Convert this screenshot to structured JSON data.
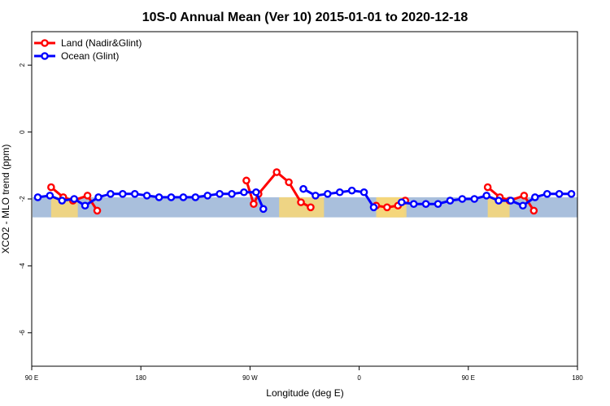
{
  "chart_data": {
    "type": "line",
    "title": "10S-0 Annual Mean (Ver 10)   2015-01-01 to 2020-12-18",
    "xlabel": "Longitude (deg E)",
    "ylabel": "XCO2 - MLO trend (ppm)",
    "xlim": [
      90,
      540
    ],
    "ylim": [
      -7,
      3
    ],
    "xticks": [
      {
        "value": 90,
        "label": "90 E"
      },
      {
        "value": 180,
        "label": "180"
      },
      {
        "value": 270,
        "label": "90 W"
      },
      {
        "value": 360,
        "label": "0"
      },
      {
        "value": 450,
        "label": "90 E"
      },
      {
        "value": 540,
        "label": "180"
      }
    ],
    "yticks": [
      {
        "value": 2,
        "label": "2"
      },
      {
        "value": 0,
        "label": "0"
      },
      {
        "value": -2,
        "label": "-2"
      },
      {
        "value": -4,
        "label": "-4"
      },
      {
        "value": -6,
        "label": "-6"
      }
    ],
    "grid": false,
    "legend_position": "top-left",
    "background_band": {
      "y_min": -2.55,
      "y_max": -1.95
    },
    "land_patches": [
      [
        106,
        128
      ],
      [
        294,
        331
      ],
      [
        374,
        399
      ],
      [
        466,
        484
      ],
      [
        375,
        397
      ]
    ],
    "series": [
      {
        "name": "Land (Nadir&Glint)",
        "color": "#ff0000",
        "segments": [
          [
            [
              106,
              -1.65
            ],
            [
              116,
              -1.95
            ],
            [
              124,
              -2.05
            ],
            [
              136,
              -1.9
            ],
            [
              144,
              -2.35
            ]
          ],
          [
            [
              267,
              -1.45
            ],
            [
              273,
              -2.15
            ],
            [
              277,
              -1.85
            ],
            [
              292,
              -1.2
            ],
            [
              302,
              -1.5
            ],
            [
              312,
              -2.1
            ],
            [
              320,
              -2.25
            ]
          ],
          [
            [
              374,
              -2.2
            ],
            [
              383,
              -2.25
            ],
            [
              392,
              -2.2
            ],
            [
              398,
              -2.05
            ]
          ],
          [
            [
              466,
              -1.65
            ],
            [
              476,
              -1.95
            ],
            [
              484,
              -2.05
            ],
            [
              496,
              -1.9
            ],
            [
              504,
              -2.35
            ]
          ]
        ]
      },
      {
        "name": "Ocean (Glint)",
        "color": "#0000ff",
        "segments": [
          [
            [
              95,
              -1.95
            ],
            [
              105,
              -1.9
            ],
            [
              115,
              -2.05
            ],
            [
              125,
              -2.0
            ],
            [
              134,
              -2.2
            ],
            [
              145,
              -1.95
            ],
            [
              155,
              -1.85
            ],
            [
              165,
              -1.85
            ],
            [
              175,
              -1.85
            ],
            [
              185,
              -1.9
            ],
            [
              195,
              -1.95
            ],
            [
              205,
              -1.95
            ],
            [
              215,
              -1.95
            ],
            [
              225,
              -1.95
            ],
            [
              235,
              -1.9
            ],
            [
              245,
              -1.85
            ],
            [
              255,
              -1.85
            ],
            [
              265,
              -1.8
            ],
            [
              275,
              -1.8
            ],
            [
              281,
              -2.3
            ]
          ],
          [
            [
              314,
              -1.7
            ],
            [
              324,
              -1.9
            ],
            [
              334,
              -1.85
            ],
            [
              344,
              -1.8
            ],
            [
              354,
              -1.75
            ],
            [
              364,
              -1.8
            ],
            [
              372,
              -2.25
            ]
          ],
          [
            [
              395,
              -2.1
            ],
            [
              405,
              -2.15
            ],
            [
              415,
              -2.15
            ],
            [
              425,
              -2.15
            ],
            [
              435,
              -2.05
            ],
            [
              445,
              -2.0
            ],
            [
              455,
              -2.0
            ],
            [
              465,
              -1.9
            ],
            [
              475,
              -2.05
            ],
            [
              485,
              -2.05
            ],
            [
              495,
              -2.2
            ],
            [
              505,
              -1.95
            ],
            [
              515,
              -1.85
            ],
            [
              525,
              -1.85
            ],
            [
              535,
              -1.85
            ]
          ]
        ]
      }
    ]
  }
}
